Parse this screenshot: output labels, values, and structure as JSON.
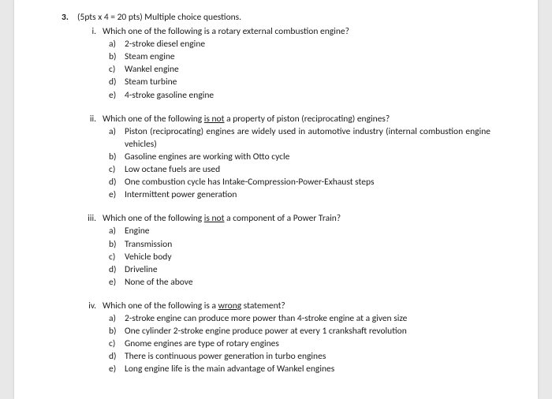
{
  "main": {
    "number": "3.",
    "heading": "(5pts x 4 = 20 pts) Multiple choice questions."
  },
  "q1": {
    "num": "i.",
    "stem": "Which one of the following is a rotary external combustion engine?",
    "a": "2-stroke diesel engine",
    "b": "Steam engine",
    "c": "Wankel engine",
    "d": "Steam turbine",
    "e": "4-stroke gasoline engine"
  },
  "q2": {
    "num": "ii.",
    "stem_pre": "Which one of the following ",
    "stem_u": "is not",
    "stem_post": " a property of piston (reciprocating) engines?",
    "a": "Piston (reciprocating) engines are widely used in automotive industry (internal combustion engine vehicles)",
    "b": "Gasoline engines are working with Otto cycle",
    "c": "Low octane fuels are used",
    "d": "One combustion cycle has Intake-Compression-Power-Exhaust steps",
    "e": "Intermittent power generation"
  },
  "q3": {
    "num": "iii.",
    "stem_pre": "Which one of the following ",
    "stem_u": "is not",
    "stem_post": " a component of a Power Train?",
    "a": "Engine",
    "b": "Transmission",
    "c": "Vehicle body",
    "d": "Driveline",
    "e": "None of the above"
  },
  "q4": {
    "num": "iv.",
    "stem_pre": "Which one of the following is a ",
    "stem_u": "wrong",
    "stem_post": " statement?",
    "a": "2-stroke engine can produce more power than 4-stroke engine at a given size",
    "b": "One cylinder 2-stroke engine produce power at every 1 crankshaft revolution",
    "c": "Gnome engines are type of rotary engines",
    "d": "There is continuous power generation in turbo engines",
    "e": "Long engine life is the main advantage of Wankel engines"
  },
  "letters": {
    "a": "a)",
    "b": "b)",
    "c": "c)",
    "d": "d)",
    "e": "e)"
  }
}
